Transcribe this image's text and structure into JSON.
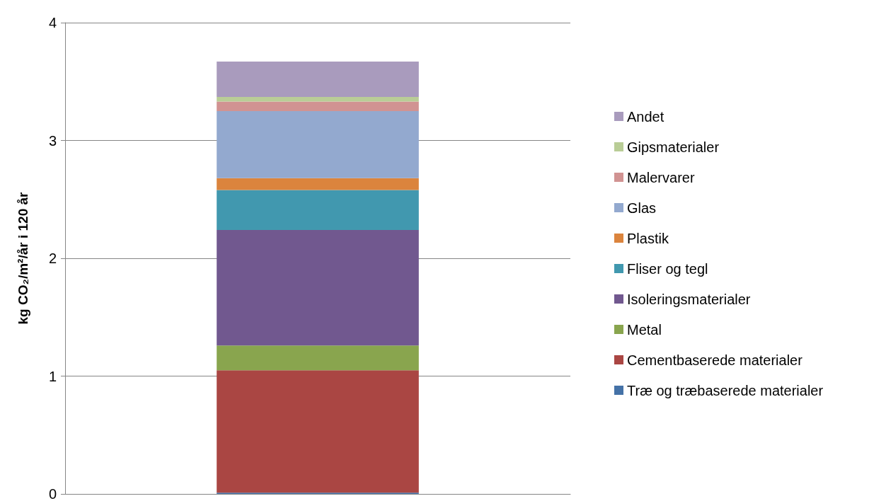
{
  "chart_data": {
    "type": "bar",
    "stacked": true,
    "ylabel": "kg CO₂/m²/år i 120 år",
    "categories": [
      null
    ],
    "series": [
      {
        "name": "Træ og træbaserede materialer",
        "color": "#4572a7",
        "values": [
          0.01
        ]
      },
      {
        "name": "Cementbaserede materialer",
        "color": "#aa4643",
        "values": [
          1.04
        ]
      },
      {
        "name": "Metal",
        "color": "#89a54e",
        "values": [
          0.21
        ]
      },
      {
        "name": "Isoleringsmaterialer",
        "color": "#71588f",
        "values": [
          0.98
        ]
      },
      {
        "name": "Fliser og tegl",
        "color": "#4198af",
        "values": [
          0.34
        ]
      },
      {
        "name": "Plastik",
        "color": "#db843d",
        "values": [
          0.1
        ]
      },
      {
        "name": "Glas",
        "color": "#93a9cf",
        "values": [
          0.57
        ]
      },
      {
        "name": "Malervarer",
        "color": "#d19392",
        "values": [
          0.08
        ]
      },
      {
        "name": "Gipsmaterialer",
        "color": "#b9cd96",
        "values": [
          0.04
        ]
      },
      {
        "name": "Andet",
        "color": "#a99bbd",
        "values": [
          0.3
        ]
      }
    ],
    "ylim": [
      0,
      4
    ],
    "yticks": [
      0,
      1,
      2,
      3,
      4
    ],
    "grid": "y",
    "legend": "right"
  }
}
